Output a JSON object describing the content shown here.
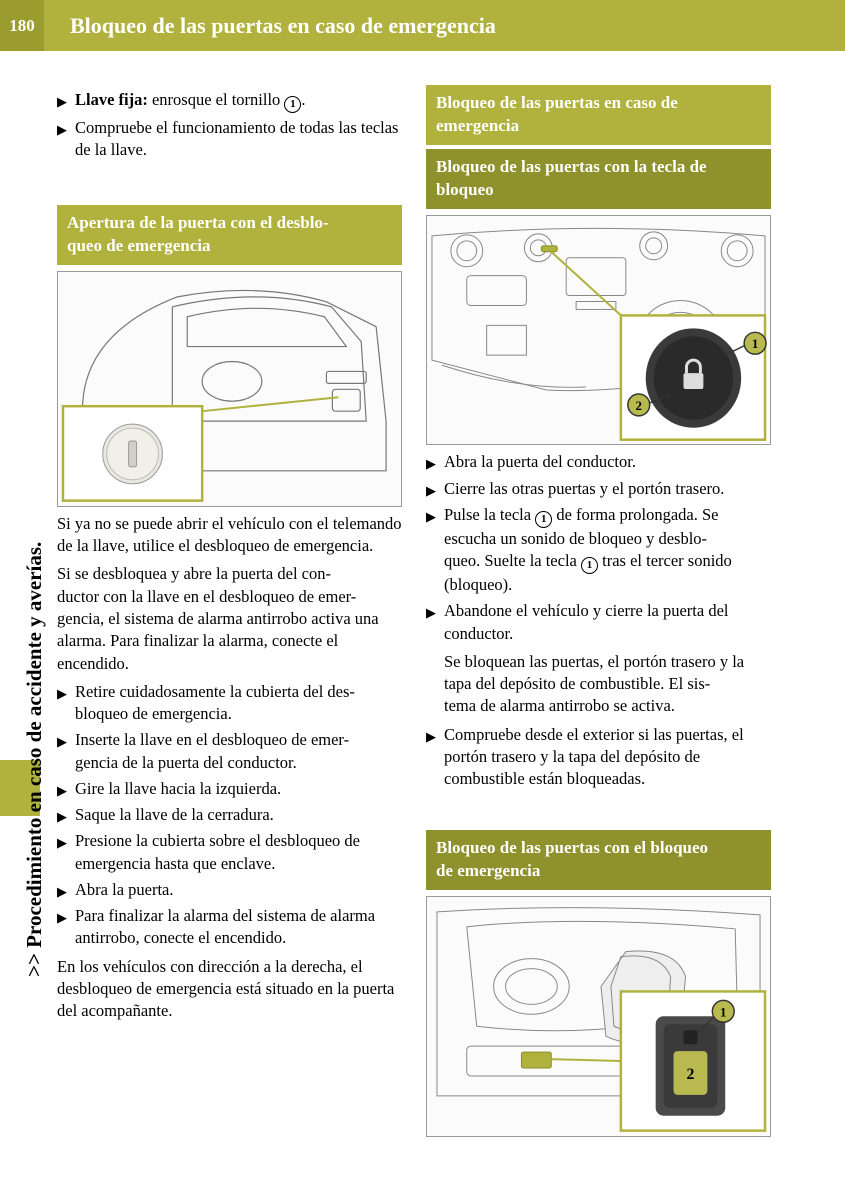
{
  "pageNumber": "180",
  "headerTitle": "Bloqueo de las puertas en caso de emergencia",
  "sideText": ">> Procedimiento en caso de accidente y averías.",
  "leftCol": {
    "initialBullets": [
      {
        "prefix": "Llave fija: ",
        "text": "enrosque el tornillo ",
        "suffix": "."
      },
      {
        "text": "Compruebe el funcionamiento de todas las teclas de la llave."
      }
    ],
    "sectionA": "Apertura de la puerta con el desblo-\nqueo de emergencia",
    "paraA": "Si ya no se puede abrir el vehículo con el telemando de la llave, utilice el desbloqueo de emergencia.",
    "paraB": "Si se desbloquea y abre la puerta del con-\nductor con la llave en el desbloqueo de emer-\ngencia, el sistema de alarma antirrobo activa una alarma. Para finalizar la alarma, conecte el encendido.",
    "bulletsB": [
      "Retire cuidadosamente la cubierta del des-\nbloqueo de emergencia.",
      "Inserte la llave en el desbloqueo de emer-\ngencia de la puerta del conductor.",
      "Gire la llave hacia la izquierda.",
      "Saque la llave de la cerradura.",
      "Presione la cubierta sobre el desbloqueo de emergencia hasta que enclave.",
      "Abra la puerta.",
      "Para finalizar la alarma del sistema de alarma antirrobo, conecte el encendido."
    ],
    "paraC": "En los vehículos con dirección a la derecha, el desbloqueo de emergencia está situado en la puerta del acompañante."
  },
  "rightCol": {
    "sectionMain": "Bloqueo de las puertas en caso de\nemergencia",
    "sectionSub1": "Bloqueo de las puertas con la tecla de\nbloqueo",
    "bulletsA": [
      "Abra la puerta del conductor.",
      "Cierre las otras puertas y el portón trasero."
    ],
    "bulletPress": {
      "pre": "Pulse la tecla ",
      "mid": " de forma prolongada. Se escucha un sonido de bloqueo y desblo-\nqueo. Suelte la tecla ",
      "post": " tras el tercer sonido (bloqueo)."
    },
    "bulletsB": [
      "Abandone el vehículo y cierre la puerta del conductor."
    ],
    "paraLock": "Se bloquean las puertas, el portón trasero y la tapa del depósito de combustible. El sis-\ntema de alarma antirrobo se activa.",
    "bulletsC": [
      "Compruebe desde el exterior si las puertas, el portón trasero y la tapa del depósito de combustible están bloqueadas."
    ],
    "sectionSub2": "Bloqueo de las puertas con el bloqueo\nde emergencia"
  },
  "colors": {
    "olive": "#b0b23d",
    "oliveDark": "#8f912c",
    "calloutBorder": "#b0b23d",
    "calloutFill": "#b8ba50"
  }
}
